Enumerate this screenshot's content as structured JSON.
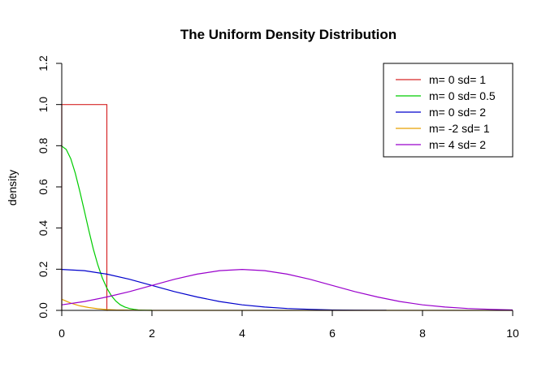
{
  "chart_data": {
    "type": "line",
    "title": "The Uniform Density Distribution",
    "xlabel": "",
    "ylabel": "density",
    "xlim": [
      0,
      10
    ],
    "ylim": [
      0,
      1.2
    ],
    "xticks": [
      "0",
      "2",
      "4",
      "6",
      "8",
      "10"
    ],
    "yticks": [
      "0.0",
      "0.2",
      "0.4",
      "0.6",
      "0.8",
      "1.0",
      "1.2"
    ],
    "grid": false,
    "legend_position": "top-right",
    "series": [
      {
        "name": "m= 0  sd= 1",
        "color": "#d62728",
        "x": [
          0,
          0,
          1,
          1,
          1,
          1.02
        ],
        "y": [
          0,
          1,
          1,
          0.5,
          0,
          0
        ]
      },
      {
        "name": "m= 0  sd= 0.5",
        "color": "#00cc00",
        "x": [
          0,
          0.1,
          0.2,
          0.3,
          0.4,
          0.5,
          0.6,
          0.7,
          0.8,
          0.9,
          1.0,
          1.1,
          1.2,
          1.3,
          1.4,
          1.5,
          1.6,
          1.7,
          1.8,
          1.9,
          2.0
        ],
        "y": [
          0.798,
          0.782,
          0.737,
          0.666,
          0.579,
          0.484,
          0.389,
          0.299,
          0.221,
          0.158,
          0.108,
          0.071,
          0.045,
          0.027,
          0.016,
          0.009,
          0.005,
          0.002,
          0.001,
          0.0005,
          0.0002
        ]
      },
      {
        "name": "m= 0  sd= 2",
        "color": "#0000cc",
        "x": [
          0,
          0.5,
          1,
          1.5,
          2,
          2.5,
          3,
          3.5,
          4,
          4.5,
          5,
          5.5,
          6,
          6.5,
          7,
          7.2
        ],
        "y": [
          0.199,
          0.193,
          0.176,
          0.151,
          0.121,
          0.091,
          0.065,
          0.043,
          0.027,
          0.016,
          0.009,
          0.005,
          0.002,
          0.001,
          0.0004,
          0.0003
        ]
      },
      {
        "name": "m= -2  sd= 1",
        "color": "#e6a100",
        "x": [
          0,
          0.2,
          0.4,
          0.6,
          0.8,
          1.0,
          1.2,
          1.5,
          2,
          3,
          4,
          5,
          6,
          7,
          8,
          9,
          10
        ],
        "y": [
          0.054,
          0.035,
          0.022,
          0.014,
          0.008,
          0.004,
          0.002,
          0.001,
          0.0001,
          0,
          0,
          0,
          0,
          0,
          0,
          0,
          0
        ]
      },
      {
        "name": "m= 4  sd= 2",
        "color": "#9900cc",
        "x": [
          0,
          0.5,
          1,
          1.5,
          2,
          2.5,
          3,
          3.5,
          4,
          4.5,
          5,
          5.5,
          6,
          6.5,
          7,
          7.5,
          8,
          8.5,
          9,
          9.5,
          10
        ],
        "y": [
          0.027,
          0.043,
          0.065,
          0.091,
          0.121,
          0.151,
          0.176,
          0.193,
          0.199,
          0.193,
          0.176,
          0.151,
          0.121,
          0.091,
          0.065,
          0.043,
          0.027,
          0.016,
          0.009,
          0.005,
          0.002
        ]
      }
    ]
  }
}
